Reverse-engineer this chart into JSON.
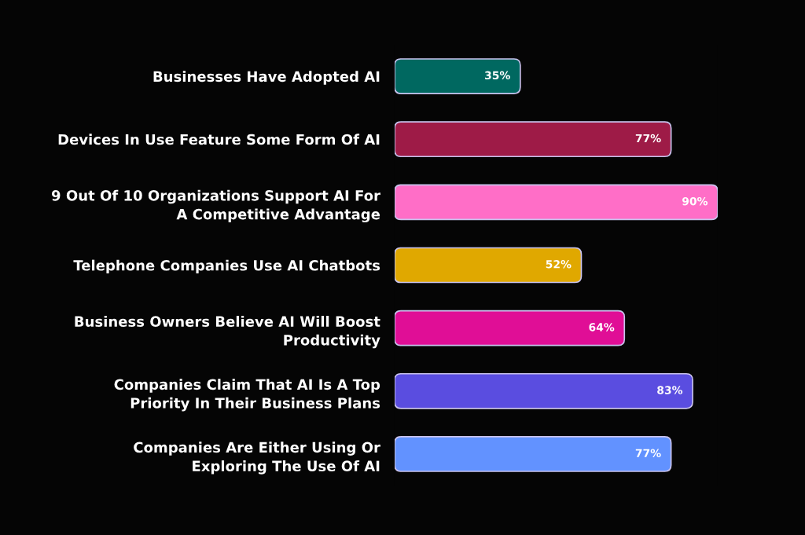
{
  "chart_data": {
    "type": "bar",
    "orientation": "horizontal",
    "categories": [
      "Businesses Have Adopted AI",
      "Devices In Use Feature Some Form Of AI",
      "9 Out Of 10 Organizations Support AI For\nA Competitive Advantage",
      "Telephone Companies Use AI Chatbots",
      "Business Owners Believe AI Will Boost\nProductivity",
      "Companies Claim That AI Is A Top\nPriority In Their Business Plans",
      "Companies Are Either Using Or\nExploring The Use Of AI"
    ],
    "values": [
      35,
      77,
      90,
      52,
      64,
      83,
      77
    ],
    "colors": [
      "#006860",
      "#9e1b47",
      "#ff6ec7",
      "#e0a800",
      "#e00e96",
      "#5a4de0",
      "#6292ff"
    ],
    "value_labels": [
      "35%",
      "77%",
      "90%",
      "52%",
      "64%",
      "83%",
      "77%"
    ]
  }
}
